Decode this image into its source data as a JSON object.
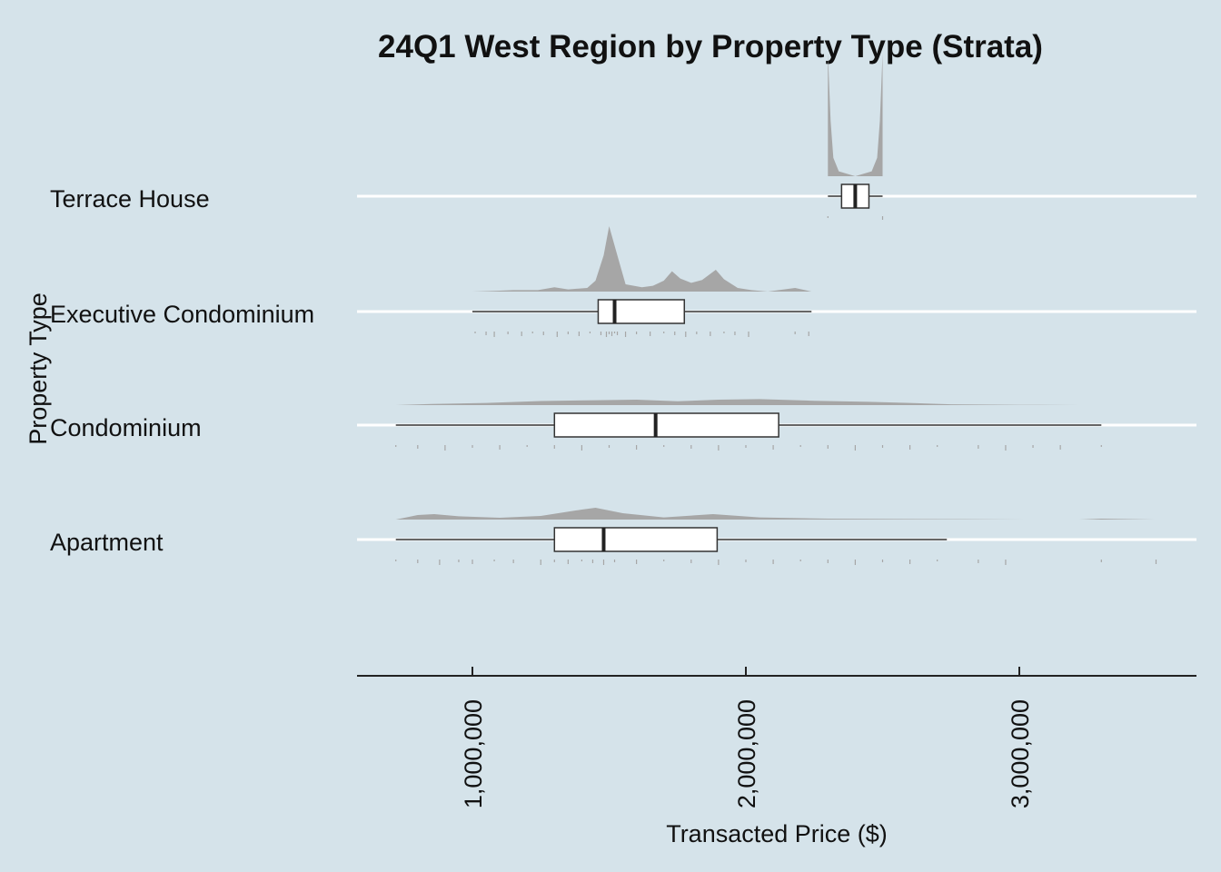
{
  "chart_data": {
    "type": "boxplot",
    "title": "24Q1 West Region by Property Type (Strata)",
    "xlabel": "Transacted Price ($)",
    "ylabel": "Property Type",
    "xlim": [
      580000,
      3650000
    ],
    "x_ticks": [
      1000000,
      2000000,
      3000000
    ],
    "x_tick_labels": [
      "1,000,000",
      "2,000,000",
      "3,000,000"
    ],
    "categories": [
      "Terrace House",
      "Executive Condominium",
      "Condominium",
      "Apartment"
    ],
    "background": "#d5e3ea",
    "gridline_color": "#ffffff",
    "density_color": "#a6a6a6",
    "box_fill": "#ffffff",
    "series": [
      {
        "category": "Terrace House",
        "min": 2300000,
        "q1": 2350000,
        "median": 2400000,
        "q3": 2450000,
        "max": 2500000,
        "density": [
          [
            2300000,
            1.0
          ],
          [
            2310000,
            0.45
          ],
          [
            2320000,
            0.15
          ],
          [
            2340000,
            0.04
          ],
          [
            2400000,
            0.0
          ],
          [
            2460000,
            0.04
          ],
          [
            2480000,
            0.15
          ],
          [
            2490000,
            0.45
          ],
          [
            2500000,
            1.0
          ]
        ],
        "points": [
          2300000,
          2500000
        ]
      },
      {
        "category": "Executive Condominium",
        "min": 1000000,
        "q1": 1460000,
        "median": 1520000,
        "q3": 1775000,
        "max": 2240000,
        "density": [
          [
            1000000,
            0.0
          ],
          [
            1080000,
            0.01
          ],
          [
            1150000,
            0.02
          ],
          [
            1240000,
            0.02
          ],
          [
            1300000,
            0.06
          ],
          [
            1350000,
            0.03
          ],
          [
            1420000,
            0.05
          ],
          [
            1450000,
            0.15
          ],
          [
            1480000,
            0.5
          ],
          [
            1500000,
            0.9
          ],
          [
            1530000,
            0.5
          ],
          [
            1560000,
            0.1
          ],
          [
            1620000,
            0.06
          ],
          [
            1660000,
            0.08
          ],
          [
            1700000,
            0.15
          ],
          [
            1730000,
            0.28
          ],
          [
            1760000,
            0.18
          ],
          [
            1800000,
            0.12
          ],
          [
            1840000,
            0.16
          ],
          [
            1890000,
            0.3
          ],
          [
            1920000,
            0.17
          ],
          [
            1970000,
            0.05
          ],
          [
            2020000,
            0.02
          ],
          [
            2080000,
            0.0
          ],
          [
            2180000,
            0.05
          ],
          [
            2240000,
            0.0
          ]
        ],
        "points": [
          1010000,
          1050000,
          1080000,
          1130000,
          1180000,
          1220000,
          1260000,
          1310000,
          1350000,
          1390000,
          1430000,
          1470000,
          1490000,
          1500000,
          1510000,
          1520000,
          1530000,
          1560000,
          1600000,
          1650000,
          1700000,
          1740000,
          1780000,
          1820000,
          1870000,
          1920000,
          1960000,
          2010000,
          2180000,
          2230000
        ]
      },
      {
        "category": "Condominium",
        "min": 720000,
        "q1": 1300000,
        "median": 1670000,
        "q3": 2120000,
        "max": 3300000,
        "density": [
          [
            720000,
            0.0
          ],
          [
            850000,
            0.04
          ],
          [
            1050000,
            0.08
          ],
          [
            1250000,
            0.15
          ],
          [
            1450000,
            0.18
          ],
          [
            1600000,
            0.2
          ],
          [
            1750000,
            0.14
          ],
          [
            1900000,
            0.2
          ],
          [
            2050000,
            0.22
          ],
          [
            2250000,
            0.16
          ],
          [
            2450000,
            0.12
          ],
          [
            2600000,
            0.08
          ],
          [
            2750000,
            0.03
          ],
          [
            3000000,
            0.01
          ],
          [
            3220000,
            0.0
          ]
        ],
        "points": [
          720000,
          800000,
          900000,
          1000000,
          1100000,
          1200000,
          1300000,
          1400000,
          1500000,
          1600000,
          1700000,
          1800000,
          1900000,
          2000000,
          2100000,
          2200000,
          2300000,
          2400000,
          2500000,
          2600000,
          2700000,
          2850000,
          2950000,
          3050000,
          3150000,
          3300000
        ]
      },
      {
        "category": "Apartment",
        "min": 720000,
        "q1": 1300000,
        "median": 1480000,
        "q3": 1895000,
        "max": 2735000,
        "density": [
          [
            720000,
            0.0
          ],
          [
            800000,
            0.25
          ],
          [
            860000,
            0.3
          ],
          [
            950000,
            0.18
          ],
          [
            1100000,
            0.1
          ],
          [
            1250000,
            0.2
          ],
          [
            1400000,
            0.55
          ],
          [
            1450000,
            0.65
          ],
          [
            1550000,
            0.35
          ],
          [
            1700000,
            0.12
          ],
          [
            1880000,
            0.3
          ],
          [
            2050000,
            0.12
          ],
          [
            2300000,
            0.05
          ],
          [
            2550000,
            0.03
          ],
          [
            2800000,
            0.02
          ],
          [
            3020000,
            0.0
          ],
          [
            3220000,
            0.0
          ],
          [
            3300000,
            0.05
          ],
          [
            3500000,
            0.0
          ]
        ],
        "points": [
          720000,
          800000,
          880000,
          950000,
          1000000,
          1080000,
          1150000,
          1250000,
          1300000,
          1350000,
          1400000,
          1440000,
          1480000,
          1520000,
          1600000,
          1700000,
          1800000,
          1900000,
          2000000,
          2100000,
          2200000,
          2300000,
          2400000,
          2500000,
          2600000,
          2700000,
          2850000,
          2950000,
          3300000,
          3500000
        ]
      }
    ]
  }
}
